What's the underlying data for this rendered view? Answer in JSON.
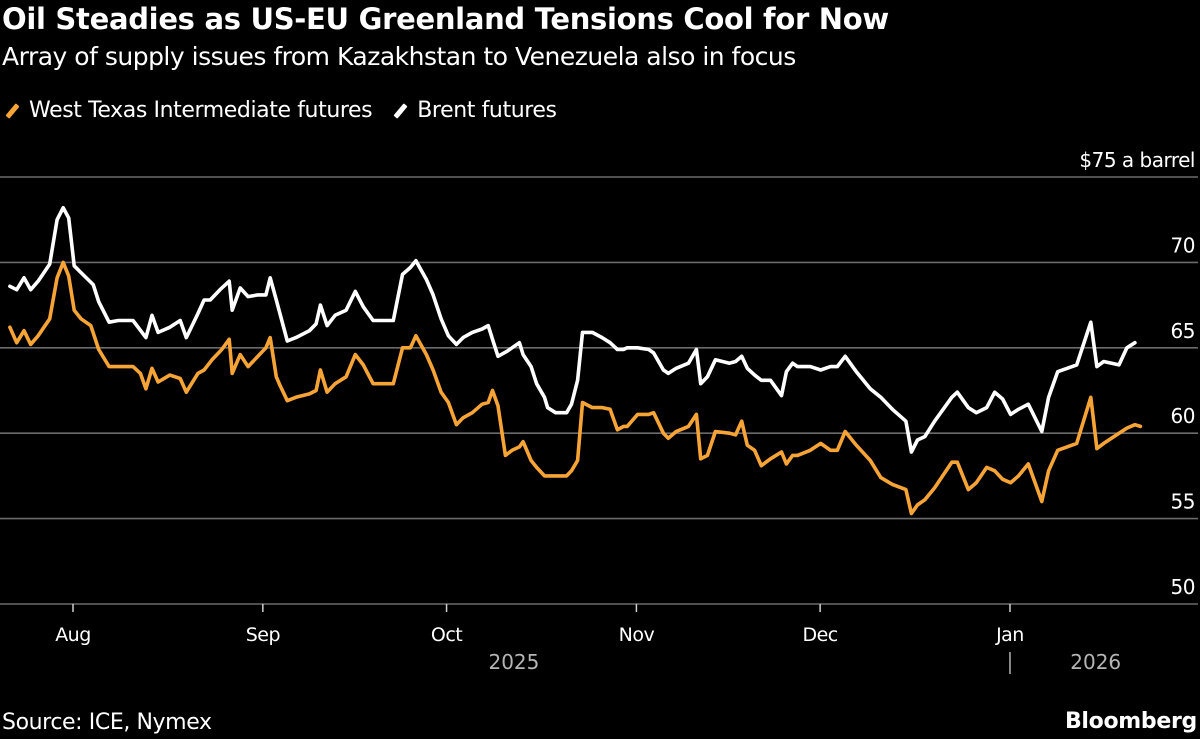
{
  "header": {
    "title": "Oil Steadies as US-EU Greenland Tensions Cool for Now",
    "subtitle": "Array of supply issues from Kazakhstan to Venezuela also in focus"
  },
  "footer": {
    "source": "Source: ICE, Nymex",
    "brand": "Bloomberg"
  },
  "chart_data": {
    "type": "line",
    "title": "Oil Steadies as US-EU Greenland Tensions Cool for Now",
    "subtitle": "Array of supply issues from Kazakhstan to Venezuela also in focus",
    "x_unit": "days since 2025-07-21",
    "xlim": [
      0,
      187
    ],
    "ylim": [
      50,
      75
    ],
    "ylabel": "$ a barrel",
    "grid": true,
    "legend_position": "top-left",
    "y_ticks": [
      {
        "value": 75,
        "label": "$75 a barrel"
      },
      {
        "value": 70,
        "label": "70"
      },
      {
        "value": 65,
        "label": "65"
      },
      {
        "value": 60,
        "label": "60"
      },
      {
        "value": 55,
        "label": "55"
      },
      {
        "value": 50,
        "label": "50"
      }
    ],
    "x_ticks": [
      {
        "day": 11,
        "label": "Aug"
      },
      {
        "day": 42,
        "label": "Sep"
      },
      {
        "day": 72,
        "label": "Oct"
      },
      {
        "day": 103,
        "label": "Nov"
      },
      {
        "day": 133,
        "label": "Dec"
      },
      {
        "day": 164,
        "label": "Jan"
      }
    ],
    "year_labels": [
      {
        "day": 83,
        "label": "2025"
      },
      {
        "day": 178,
        "label": "2026",
        "divider_day": 164
      }
    ],
    "series": [
      {
        "name": "West Texas Intermediate futures",
        "color": "#f7a437",
        "points": [
          [
            0.7,
            66.2
          ],
          [
            1.8,
            65.3
          ],
          [
            3.0,
            66.0
          ],
          [
            4.1,
            65.2
          ],
          [
            5.3,
            65.7
          ],
          [
            7.2,
            66.7
          ],
          [
            8.4,
            69.1
          ],
          [
            9.4,
            70.0
          ],
          [
            10.3,
            69.2
          ],
          [
            11.2,
            67.2
          ],
          [
            12.3,
            66.7
          ],
          [
            13.9,
            66.3
          ],
          [
            15.2,
            64.9
          ],
          [
            16.9,
            63.9
          ],
          [
            18.4,
            63.9
          ],
          [
            20.8,
            63.9
          ],
          [
            22.0,
            63.5
          ],
          [
            22.9,
            62.6
          ],
          [
            23.9,
            63.8
          ],
          [
            24.9,
            63.0
          ],
          [
            26.8,
            63.4
          ],
          [
            28.5,
            63.2
          ],
          [
            29.5,
            62.4
          ],
          [
            31.4,
            63.5
          ],
          [
            32.4,
            63.7
          ],
          [
            33.7,
            64.3
          ],
          [
            35.3,
            64.9
          ],
          [
            36.5,
            65.5
          ],
          [
            37.0,
            63.5
          ],
          [
            38.3,
            64.6
          ],
          [
            39.6,
            63.9
          ],
          [
            41.2,
            64.5
          ],
          [
            42.5,
            65.0
          ],
          [
            43.2,
            65.6
          ],
          [
            44.2,
            63.3
          ],
          [
            44.8,
            62.8
          ],
          [
            46.0,
            61.9
          ],
          [
            47.4,
            62.1
          ],
          [
            49.6,
            62.3
          ],
          [
            50.7,
            62.5
          ],
          [
            51.4,
            63.7
          ],
          [
            52.5,
            62.4
          ],
          [
            53.8,
            62.9
          ],
          [
            55.6,
            63.3
          ],
          [
            57.1,
            64.6
          ],
          [
            58.4,
            64.0
          ],
          [
            60.0,
            62.9
          ],
          [
            61.8,
            62.9
          ],
          [
            63.3,
            62.9
          ],
          [
            64.8,
            65.0
          ],
          [
            66.1,
            65.0
          ],
          [
            67.0,
            65.7
          ],
          [
            68.7,
            64.6
          ],
          [
            69.8,
            63.7
          ],
          [
            71.1,
            62.4
          ],
          [
            72.3,
            61.8
          ],
          [
            73.6,
            60.5
          ],
          [
            74.7,
            60.9
          ],
          [
            76.2,
            61.2
          ],
          [
            77.8,
            61.7
          ],
          [
            78.8,
            61.8
          ],
          [
            79.5,
            62.5
          ],
          [
            80.4,
            61.6
          ],
          [
            81.6,
            58.7
          ],
          [
            82.7,
            59.0
          ],
          [
            83.9,
            59.2
          ],
          [
            84.5,
            59.5
          ],
          [
            85.8,
            58.4
          ],
          [
            86.7,
            58.0
          ],
          [
            88.0,
            57.5
          ],
          [
            88.5,
            57.5
          ],
          [
            89.8,
            57.5
          ],
          [
            91.6,
            57.5
          ],
          [
            92.4,
            57.8
          ],
          [
            93.4,
            58.4
          ],
          [
            94.2,
            61.8
          ],
          [
            95.8,
            61.5
          ],
          [
            97.4,
            61.5
          ],
          [
            98.7,
            61.4
          ],
          [
            99.9,
            60.2
          ],
          [
            100.9,
            60.4
          ],
          [
            101.5,
            60.4
          ],
          [
            103.2,
            61.1
          ],
          [
            105.0,
            61.1
          ],
          [
            105.8,
            61.2
          ],
          [
            107.4,
            60.0
          ],
          [
            108.2,
            59.7
          ],
          [
            109.5,
            60.1
          ],
          [
            111.5,
            60.4
          ],
          [
            112.8,
            61.1
          ],
          [
            113.5,
            58.5
          ],
          [
            114.6,
            58.7
          ],
          [
            115.9,
            60.1
          ],
          [
            118.2,
            60.0
          ],
          [
            119.2,
            59.9
          ],
          [
            120.2,
            60.7
          ],
          [
            121.1,
            59.3
          ],
          [
            122.3,
            59.0
          ],
          [
            123.4,
            58.1
          ],
          [
            124.9,
            58.5
          ],
          [
            126.7,
            58.9
          ],
          [
            127.5,
            58.2
          ],
          [
            128.5,
            58.7
          ],
          [
            129.3,
            58.7
          ],
          [
            131.4,
            59.0
          ],
          [
            133.1,
            59.4
          ],
          [
            134.7,
            59.0
          ],
          [
            135.8,
            59.0
          ],
          [
            137.1,
            60.1
          ],
          [
            138.9,
            59.3
          ],
          [
            141.2,
            58.4
          ],
          [
            142.9,
            57.4
          ],
          [
            144.8,
            57.0
          ],
          [
            147.0,
            56.7
          ],
          [
            147.9,
            55.3
          ],
          [
            148.9,
            55.8
          ],
          [
            150.1,
            56.1
          ],
          [
            151.7,
            56.8
          ],
          [
            154.5,
            58.3
          ],
          [
            155.4,
            58.3
          ],
          [
            157.2,
            56.7
          ],
          [
            158.5,
            57.1
          ],
          [
            160.2,
            58.0
          ],
          [
            161.5,
            57.8
          ],
          [
            162.8,
            57.3
          ],
          [
            164.1,
            57.1
          ],
          [
            165.4,
            57.5
          ],
          [
            167.0,
            58.2
          ],
          [
            169.2,
            56.0
          ],
          [
            170.3,
            57.8
          ],
          [
            171.8,
            59.0
          ],
          [
            174.9,
            59.4
          ],
          [
            177.2,
            62.1
          ],
          [
            178.2,
            59.1
          ],
          [
            179.3,
            59.4
          ],
          [
            181.8,
            60.0
          ],
          [
            183.1,
            60.3
          ],
          [
            184.4,
            60.5
          ],
          [
            185.3,
            60.4
          ]
        ]
      },
      {
        "name": "Brent futures",
        "color": "#ffffff",
        "points": [
          [
            0.7,
            68.6
          ],
          [
            1.8,
            68.4
          ],
          [
            3.0,
            69.1
          ],
          [
            4.1,
            68.4
          ],
          [
            5.3,
            68.9
          ],
          [
            7.2,
            69.9
          ],
          [
            8.4,
            72.5
          ],
          [
            9.4,
            73.2
          ],
          [
            10.3,
            72.6
          ],
          [
            11.2,
            69.8
          ],
          [
            12.3,
            69.4
          ],
          [
            14.3,
            68.7
          ],
          [
            15.2,
            67.7
          ],
          [
            16.9,
            66.5
          ],
          [
            18.4,
            66.6
          ],
          [
            20.8,
            66.6
          ],
          [
            22.9,
            65.6
          ],
          [
            23.9,
            66.9
          ],
          [
            24.9,
            65.9
          ],
          [
            26.8,
            66.2
          ],
          [
            28.5,
            66.6
          ],
          [
            29.5,
            65.6
          ],
          [
            31.4,
            67.0
          ],
          [
            32.4,
            67.8
          ],
          [
            33.4,
            67.8
          ],
          [
            35.0,
            68.4
          ],
          [
            36.5,
            68.9
          ],
          [
            37.0,
            67.2
          ],
          [
            38.3,
            68.5
          ],
          [
            39.6,
            68.0
          ],
          [
            41.2,
            68.1
          ],
          [
            42.5,
            68.1
          ],
          [
            43.2,
            69.1
          ],
          [
            44.2,
            67.8
          ],
          [
            46.0,
            65.4
          ],
          [
            47.4,
            65.6
          ],
          [
            49.6,
            66.0
          ],
          [
            50.7,
            66.4
          ],
          [
            51.4,
            67.5
          ],
          [
            52.5,
            66.3
          ],
          [
            53.8,
            66.9
          ],
          [
            55.6,
            67.2
          ],
          [
            57.1,
            68.3
          ],
          [
            58.4,
            67.4
          ],
          [
            60.0,
            66.6
          ],
          [
            61.8,
            66.6
          ],
          [
            63.3,
            66.6
          ],
          [
            64.8,
            69.3
          ],
          [
            66.1,
            69.7
          ],
          [
            67.0,
            70.1
          ],
          [
            68.7,
            69.0
          ],
          [
            69.8,
            68.1
          ],
          [
            71.1,
            66.7
          ],
          [
            72.3,
            65.7
          ],
          [
            73.6,
            65.2
          ],
          [
            74.7,
            65.6
          ],
          [
            76.2,
            65.9
          ],
          [
            77.8,
            66.1
          ],
          [
            78.8,
            66.3
          ],
          [
            79.5,
            65.5
          ],
          [
            80.4,
            64.5
          ],
          [
            81.9,
            64.8
          ],
          [
            83.9,
            65.3
          ],
          [
            84.5,
            64.6
          ],
          [
            85.8,
            63.9
          ],
          [
            86.7,
            62.9
          ],
          [
            88.0,
            62.1
          ],
          [
            88.5,
            61.5
          ],
          [
            89.8,
            61.2
          ],
          [
            91.6,
            61.2
          ],
          [
            92.4,
            61.7
          ],
          [
            93.4,
            63.1
          ],
          [
            94.2,
            65.9
          ],
          [
            95.8,
            65.9
          ],
          [
            97.4,
            65.6
          ],
          [
            98.7,
            65.3
          ],
          [
            99.9,
            64.9
          ],
          [
            100.9,
            64.9
          ],
          [
            101.5,
            65.0
          ],
          [
            103.2,
            65.0
          ],
          [
            105.0,
            64.9
          ],
          [
            105.8,
            64.7
          ],
          [
            107.4,
            63.7
          ],
          [
            108.2,
            63.5
          ],
          [
            109.5,
            63.8
          ],
          [
            111.5,
            64.1
          ],
          [
            112.8,
            64.9
          ],
          [
            113.5,
            62.9
          ],
          [
            114.6,
            63.3
          ],
          [
            115.9,
            64.3
          ],
          [
            118.2,
            64.1
          ],
          [
            119.2,
            64.2
          ],
          [
            120.2,
            64.5
          ],
          [
            121.1,
            63.8
          ],
          [
            122.3,
            63.4
          ],
          [
            123.4,
            63.1
          ],
          [
            124.9,
            63.1
          ],
          [
            126.7,
            62.2
          ],
          [
            127.5,
            63.6
          ],
          [
            128.5,
            64.1
          ],
          [
            129.3,
            63.9
          ],
          [
            131.4,
            63.9
          ],
          [
            133.1,
            63.7
          ],
          [
            134.7,
            63.9
          ],
          [
            135.8,
            63.9
          ],
          [
            137.1,
            64.5
          ],
          [
            138.9,
            63.6
          ],
          [
            141.2,
            62.6
          ],
          [
            142.9,
            62.1
          ],
          [
            144.8,
            61.4
          ],
          [
            147.0,
            60.7
          ],
          [
            147.9,
            58.9
          ],
          [
            148.9,
            59.6
          ],
          [
            150.1,
            59.8
          ],
          [
            151.7,
            60.7
          ],
          [
            154.5,
            62.1
          ],
          [
            155.4,
            62.4
          ],
          [
            157.2,
            61.5
          ],
          [
            158.5,
            61.2
          ],
          [
            160.2,
            61.5
          ],
          [
            161.5,
            62.4
          ],
          [
            162.8,
            62.0
          ],
          [
            164.1,
            61.1
          ],
          [
            165.4,
            61.4
          ],
          [
            167.0,
            61.7
          ],
          [
            169.2,
            60.1
          ],
          [
            170.3,
            62.1
          ],
          [
            171.8,
            63.6
          ],
          [
            174.9,
            64.0
          ],
          [
            177.2,
            66.5
          ],
          [
            178.2,
            63.9
          ],
          [
            179.3,
            64.2
          ],
          [
            181.8,
            64.0
          ],
          [
            183.1,
            65.0
          ],
          [
            184.4,
            65.3
          ]
        ]
      }
    ]
  }
}
